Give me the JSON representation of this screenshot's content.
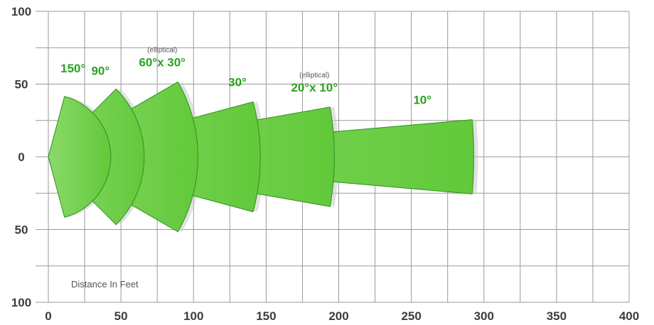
{
  "chart_data": {
    "type": "area",
    "title": "",
    "xlabel": "Distance In Feet",
    "ylabel": "",
    "xlim": [
      0,
      400
    ],
    "ylim": [
      -100,
      100
    ],
    "grid": true,
    "x_ticks": [
      "0",
      "50",
      "100",
      "150",
      "200",
      "250",
      "300",
      "350",
      "400"
    ],
    "y_ticks": [
      "100",
      "50",
      "0",
      "50",
      "100"
    ],
    "beams": [
      {
        "label": "150°",
        "note": "",
        "range": 43,
        "half_angle": 75
      },
      {
        "label": "90°",
        "note": "",
        "range": 66,
        "half_angle": 45
      },
      {
        "label": "60°x 30°",
        "note": "(elliptical)",
        "range": 103,
        "half_angle": 30
      },
      {
        "label": "30°",
        "note": "",
        "range": 146,
        "half_angle": 15
      },
      {
        "label": "20°x 10°",
        "note": "(elliptical)",
        "range": 197,
        "half_angle": 10
      },
      {
        "label": "10°",
        "note": "",
        "range": 293,
        "half_angle": 5
      }
    ],
    "colors": {
      "beam_fill": "#62c93a",
      "beam_fill_light": "#8bd96a",
      "beam_stroke": "#2e8f1e",
      "beam_shadow": "#c8c8c8",
      "label_color": "#2aa31e",
      "grid_color": "#9a9a9a"
    }
  }
}
